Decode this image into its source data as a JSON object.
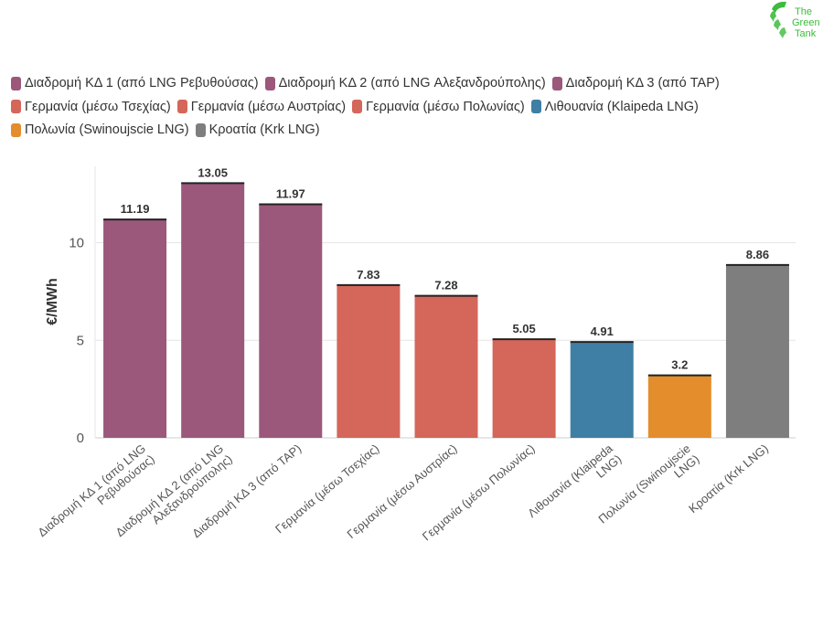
{
  "logo": {
    "text_line1": "The",
    "text_line2": "Green",
    "text_line3": "Tank"
  },
  "colors": {
    "purple": "#9b587b",
    "red": "#d5665a",
    "blue": "#3f7fa5",
    "orange": "#e38d2c",
    "gray": "#7e7e7e",
    "logo_green": "#3dbb3d"
  },
  "legend": [
    {
      "label": "Διαδρομή ΚΔ 1 (από LNG Ρεβυθούσας)",
      "color": "#9b587b"
    },
    {
      "label": "Διαδρομή ΚΔ 2 (από LNG Αλεξανδρούπολης)",
      "color": "#9b587b"
    },
    {
      "label": "Διαδρομή ΚΔ 3 (από TAP)",
      "color": "#9b587b"
    },
    {
      "label": "Γερμανία (μέσω Τσεχίας)",
      "color": "#d5665a"
    },
    {
      "label": "Γερμανία (μέσω Αυστρίας)",
      "color": "#d5665a"
    },
    {
      "label": "Γερμανία (μέσω Πολωνίας)",
      "color": "#d5665a"
    },
    {
      "label": "Λιθουανία (Klaipeda LNG)",
      "color": "#3f7fa5"
    },
    {
      "label": "Πολωνία (Swinoujscie LNG)",
      "color": "#e38d2c"
    },
    {
      "label": "Κροατία (Krk LNG)",
      "color": "#7e7e7e"
    }
  ],
  "chart_data": {
    "type": "bar",
    "ylabel": "€/MWh",
    "xlabel": "",
    "ylim": [
      0,
      14
    ],
    "yticks": [
      0,
      5,
      10
    ],
    "grid": true,
    "legend_position": "top",
    "categories": [
      [
        "Διαδρομή ΚΔ 1 (από LNG",
        "Ρεβυθούσας)"
      ],
      [
        "Διαδρομή ΚΔ 2 (από LNG",
        "Αλεξανδρούπολης)"
      ],
      [
        "Διαδρομή ΚΔ 3 (από TAP)"
      ],
      [
        "Γερμανία (μέσω Τσεχίας)"
      ],
      [
        "Γερμανία (μέσω Αυστρίας)"
      ],
      [
        "Γερμανία (μέσω Πολωνίας)"
      ],
      [
        "Λιθουανία (Klaipeda",
        "LNG)"
      ],
      [
        "Πολωνία (Swinoujscie",
        "LNG)"
      ],
      [
        "Κροατία (Krk LNG)"
      ]
    ],
    "values": [
      11.19,
      13.05,
      11.97,
      7.83,
      7.28,
      5.05,
      4.91,
      3.2,
      8.86
    ],
    "value_labels": [
      "11.19",
      "13.05",
      "11.97",
      "7.83",
      "7.28",
      "5.05",
      "4.91",
      "3.2",
      "8.86"
    ],
    "colors": [
      "#9b587b",
      "#9b587b",
      "#9b587b",
      "#d5665a",
      "#d5665a",
      "#d5665a",
      "#3f7fa5",
      "#e38d2c",
      "#7e7e7e"
    ]
  }
}
